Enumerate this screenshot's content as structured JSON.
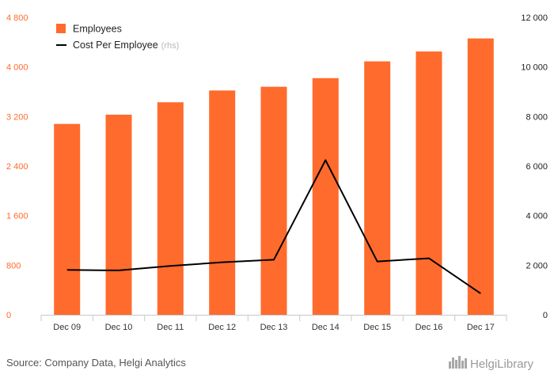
{
  "chart_data": {
    "type": "bar",
    "categories": [
      "Dec 09",
      "Dec 10",
      "Dec 11",
      "Dec 12",
      "Dec 13",
      "Dec 14",
      "Dec 15",
      "Dec 16",
      "Dec 17"
    ],
    "series": [
      {
        "name": "Employees",
        "type": "bar",
        "axis": "left",
        "color": "#ff6b2c",
        "values": [
          3080,
          3230,
          3430,
          3620,
          3680,
          3820,
          4090,
          4250,
          4460
        ]
      },
      {
        "name": "Cost Per Employee",
        "legend_suffix": "(rhs)",
        "type": "line",
        "axis": "right",
        "color": "#000000",
        "values": [
          1810,
          1790,
          1970,
          2120,
          2220,
          6240,
          2150,
          2280,
          860
        ]
      }
    ],
    "y_left": {
      "ylim": [
        0,
        4800
      ],
      "ticks": [
        "0",
        "800",
        "1 600",
        "2 400",
        "3 200",
        "4 000",
        "4 800"
      ],
      "tick_values": [
        0,
        800,
        1600,
        2400,
        3200,
        4000,
        4800
      ]
    },
    "y_right": {
      "ylim": [
        0,
        12000
      ],
      "ticks": [
        "0",
        "2 000",
        "4 000",
        "6 000",
        "8 000",
        "10 000",
        "12 000"
      ],
      "tick_values": [
        0,
        2000,
        4000,
        6000,
        8000,
        10000,
        12000
      ]
    },
    "grid": false,
    "legend_position": "top-left"
  },
  "footer": {
    "source": "Source: Company Data, Helgi Analytics",
    "logo": "HelgiLibrary"
  },
  "colors": {
    "bar": "#ff6b2c",
    "line": "#000000",
    "axis": "#c8c8c8"
  }
}
